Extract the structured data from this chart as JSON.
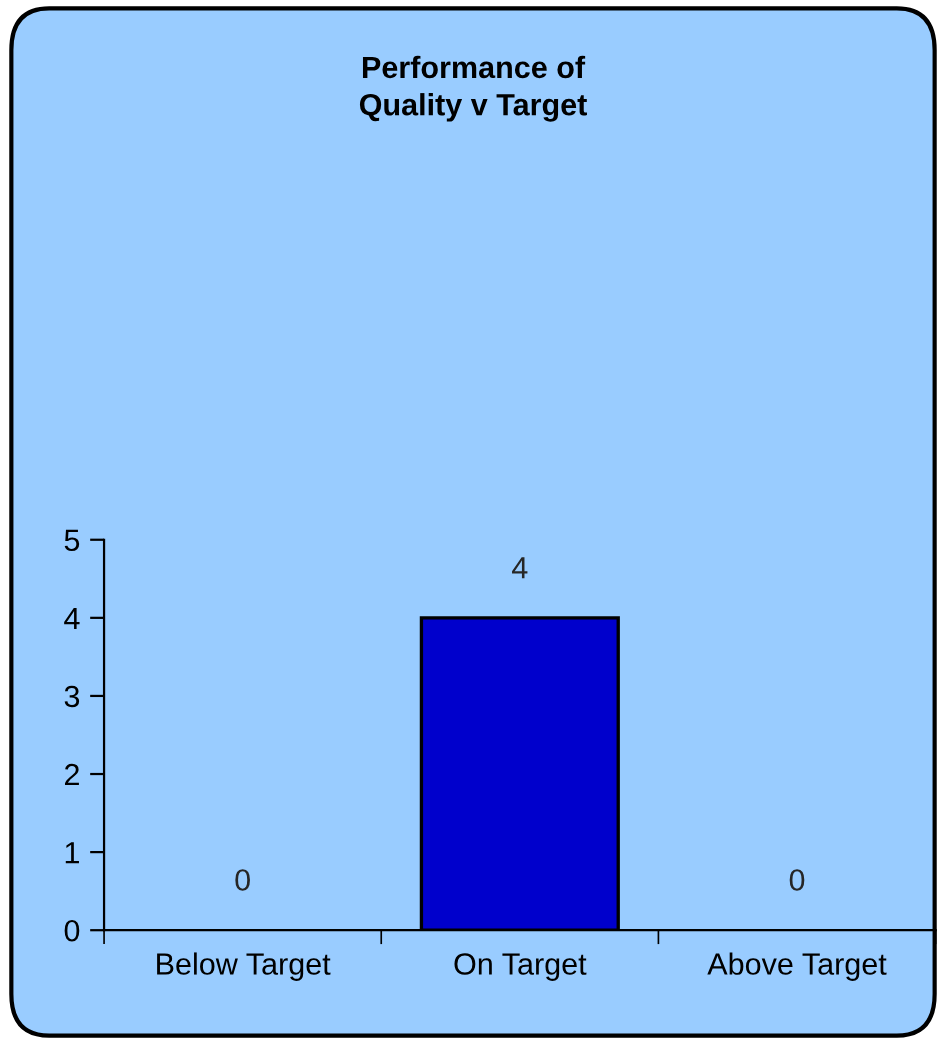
{
  "chart_data": {
    "type": "bar",
    "title": "Performance of\nQuality v Target",
    "categories": [
      "Below Target",
      "On Target",
      "Above Target"
    ],
    "values": [
      0,
      4,
      0
    ],
    "color": "#0000cc",
    "ylim": [
      0,
      5
    ],
    "yticks": [
      0,
      1,
      2,
      3,
      4,
      5
    ],
    "grid": false,
    "data_labels": true
  }
}
